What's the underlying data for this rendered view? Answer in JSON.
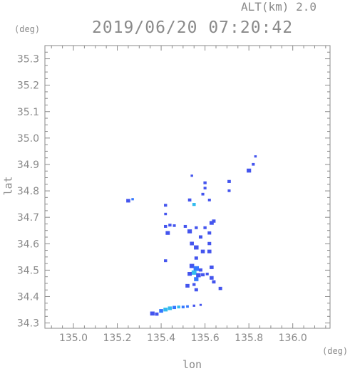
{
  "header": {
    "alt_label": "ALT(km) 2.0",
    "timestamp": "2019/06/20 07:20:42"
  },
  "chart_data": {
    "type": "scatter",
    "xlabel": "lon",
    "ylabel": "lat",
    "x_unit": "(deg)",
    "y_unit": "(deg)",
    "xlim": [
      134.87,
      136.17
    ],
    "ylim": [
      34.28,
      35.35
    ],
    "x_ticks": [
      {
        "value": 135.0,
        "label": "135.0"
      },
      {
        "value": 135.2,
        "label": "135.2"
      },
      {
        "value": 135.4,
        "label": "135.4"
      },
      {
        "value": 135.6,
        "label": "135.6"
      },
      {
        "value": 135.8,
        "label": "135.8"
      },
      {
        "value": 136.0,
        "label": "136.0"
      }
    ],
    "y_ticks": [
      {
        "value": 34.3,
        "label": "34.3"
      },
      {
        "value": 34.4,
        "label": "34.4"
      },
      {
        "value": 34.5,
        "label": "34.5"
      },
      {
        "value": 34.6,
        "label": "34.6"
      },
      {
        "value": 34.7,
        "label": "34.7"
      },
      {
        "value": 34.8,
        "label": "34.8"
      },
      {
        "value": 34.9,
        "label": "34.9"
      },
      {
        "value": 35.0,
        "label": "35.0"
      },
      {
        "value": 35.1,
        "label": "35.1"
      },
      {
        "value": 35.2,
        "label": "35.2"
      },
      {
        "value": 35.3,
        "label": "35.3"
      }
    ],
    "grid": false,
    "colors": {
      "strong": "#4455ee",
      "medium": "#3377ff",
      "light": "#33bbee",
      "axis": "#8a8a8a"
    },
    "points": [
      {
        "x": 135.25,
        "y": 34.762,
        "c": "strong",
        "s": 1.2
      },
      {
        "x": 135.27,
        "y": 34.768,
        "c": "medium",
        "s": 0.5
      },
      {
        "x": 135.42,
        "y": 34.745,
        "c": "strong",
        "s": 0.8
      },
      {
        "x": 135.42,
        "y": 34.712,
        "c": "strong",
        "s": 0.6
      },
      {
        "x": 135.54,
        "y": 34.857,
        "c": "strong",
        "s": 0.5
      },
      {
        "x": 135.53,
        "y": 34.765,
        "c": "strong",
        "s": 0.9
      },
      {
        "x": 135.55,
        "y": 34.748,
        "c": "light",
        "s": 0.9
      },
      {
        "x": 135.6,
        "y": 34.83,
        "c": "strong",
        "s": 0.8
      },
      {
        "x": 135.6,
        "y": 34.81,
        "c": "strong",
        "s": 0.7
      },
      {
        "x": 135.59,
        "y": 34.787,
        "c": "strong",
        "s": 0.7
      },
      {
        "x": 135.62,
        "y": 34.765,
        "c": "strong",
        "s": 0.7
      },
      {
        "x": 135.71,
        "y": 34.835,
        "c": "strong",
        "s": 0.9
      },
      {
        "x": 135.71,
        "y": 34.8,
        "c": "strong",
        "s": 0.7
      },
      {
        "x": 135.8,
        "y": 34.876,
        "c": "strong",
        "s": 1.4
      },
      {
        "x": 135.82,
        "y": 34.9,
        "c": "strong",
        "s": 0.7
      },
      {
        "x": 135.83,
        "y": 34.93,
        "c": "strong",
        "s": 0.5
      },
      {
        "x": 135.42,
        "y": 34.665,
        "c": "strong",
        "s": 0.8
      },
      {
        "x": 135.44,
        "y": 34.67,
        "c": "strong",
        "s": 0.8
      },
      {
        "x": 135.46,
        "y": 34.668,
        "c": "strong",
        "s": 0.7
      },
      {
        "x": 135.43,
        "y": 34.64,
        "c": "strong",
        "s": 1.3
      },
      {
        "x": 135.51,
        "y": 34.665,
        "c": "strong",
        "s": 0.8
      },
      {
        "x": 135.53,
        "y": 34.646,
        "c": "strong",
        "s": 1.4
      },
      {
        "x": 135.56,
        "y": 34.66,
        "c": "strong",
        "s": 0.8
      },
      {
        "x": 135.58,
        "y": 34.625,
        "c": "strong",
        "s": 1.0
      },
      {
        "x": 135.6,
        "y": 34.66,
        "c": "strong",
        "s": 0.8
      },
      {
        "x": 135.63,
        "y": 34.678,
        "c": "strong",
        "s": 1.3
      },
      {
        "x": 135.64,
        "y": 34.685,
        "c": "strong",
        "s": 1.0
      },
      {
        "x": 135.62,
        "y": 34.64,
        "c": "strong",
        "s": 1.0
      },
      {
        "x": 135.54,
        "y": 34.6,
        "c": "strong",
        "s": 1.2
      },
      {
        "x": 135.56,
        "y": 34.585,
        "c": "strong",
        "s": 1.5
      },
      {
        "x": 135.59,
        "y": 34.57,
        "c": "strong",
        "s": 1.2
      },
      {
        "x": 135.62,
        "y": 34.6,
        "c": "strong",
        "s": 1.0
      },
      {
        "x": 135.62,
        "y": 34.57,
        "c": "strong",
        "s": 1.2
      },
      {
        "x": 135.56,
        "y": 34.545,
        "c": "strong",
        "s": 1.0
      },
      {
        "x": 135.42,
        "y": 34.535,
        "c": "strong",
        "s": 0.8
      },
      {
        "x": 135.54,
        "y": 34.515,
        "c": "strong",
        "s": 1.5
      },
      {
        "x": 135.56,
        "y": 34.505,
        "c": "medium",
        "s": 1.8
      },
      {
        "x": 135.55,
        "y": 34.49,
        "c": "light",
        "s": 1.6
      },
      {
        "x": 135.53,
        "y": 34.485,
        "c": "strong",
        "s": 1.3
      },
      {
        "x": 135.57,
        "y": 34.48,
        "c": "strong",
        "s": 1.5
      },
      {
        "x": 135.56,
        "y": 34.465,
        "c": "medium",
        "s": 1.4
      },
      {
        "x": 135.58,
        "y": 34.5,
        "c": "strong",
        "s": 1.0
      },
      {
        "x": 135.59,
        "y": 34.482,
        "c": "strong",
        "s": 1.0
      },
      {
        "x": 135.61,
        "y": 34.485,
        "c": "strong",
        "s": 0.7
      },
      {
        "x": 135.63,
        "y": 34.51,
        "c": "strong",
        "s": 1.2
      },
      {
        "x": 135.63,
        "y": 34.47,
        "c": "strong",
        "s": 1.2
      },
      {
        "x": 135.64,
        "y": 34.455,
        "c": "strong",
        "s": 1.0
      },
      {
        "x": 135.52,
        "y": 34.44,
        "c": "strong",
        "s": 1.2
      },
      {
        "x": 135.56,
        "y": 34.425,
        "c": "strong",
        "s": 1.0
      },
      {
        "x": 135.55,
        "y": 34.445,
        "c": "strong",
        "s": 0.8
      },
      {
        "x": 135.67,
        "y": 34.43,
        "c": "strong",
        "s": 1.0
      },
      {
        "x": 135.36,
        "y": 34.335,
        "c": "strong",
        "s": 1.4
      },
      {
        "x": 135.38,
        "y": 34.333,
        "c": "strong",
        "s": 1.0
      },
      {
        "x": 135.4,
        "y": 34.345,
        "c": "medium",
        "s": 1.2
      },
      {
        "x": 135.42,
        "y": 34.35,
        "c": "light",
        "s": 1.3
      },
      {
        "x": 135.44,
        "y": 34.355,
        "c": "light",
        "s": 1.2
      },
      {
        "x": 135.46,
        "y": 34.358,
        "c": "medium",
        "s": 1.0
      },
      {
        "x": 135.48,
        "y": 34.36,
        "c": "light",
        "s": 0.8
      },
      {
        "x": 135.5,
        "y": 34.36,
        "c": "medium",
        "s": 0.7
      },
      {
        "x": 135.52,
        "y": 34.362,
        "c": "medium",
        "s": 0.6
      },
      {
        "x": 135.55,
        "y": 34.365,
        "c": "strong",
        "s": 0.5
      },
      {
        "x": 135.58,
        "y": 34.368,
        "c": "strong",
        "s": 0.4
      }
    ]
  }
}
